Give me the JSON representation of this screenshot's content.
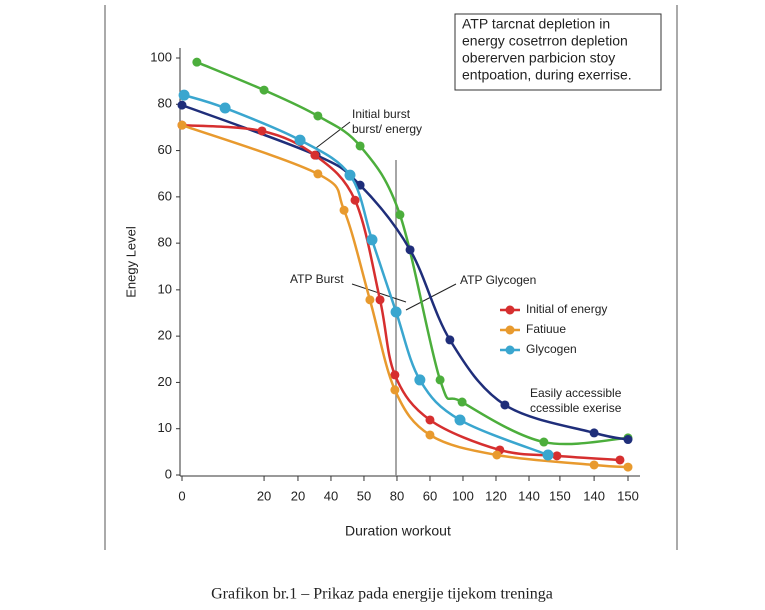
{
  "chart_data": {
    "type": "line",
    "xlabel": "Duration workout",
    "ylabel": "Enegy Level",
    "caption": "Grafikon br.1 – Prikaz pada energije tijekom treninga",
    "xlim": [
      0,
      150
    ],
    "ylim": [
      0,
      100
    ],
    "xticks": [
      0,
      {
        "value": 27.6,
        "label": "20"
      },
      {
        "value": 39,
        "label": "20"
      },
      {
        "value": 50.1,
        "label": "40"
      },
      {
        "value": 61.2,
        "label": "50"
      },
      {
        "value": 72.3,
        "label": "80"
      },
      {
        "value": 83.4,
        "label": "60"
      },
      {
        "value": 94.5,
        "label": "100"
      },
      {
        "value": 105.6,
        "label": "120"
      },
      {
        "value": 116.7,
        "label": "140"
      },
      {
        "value": 127.1,
        "label": "150"
      },
      {
        "value": 138.6,
        "label": "140"
      },
      150
    ],
    "yticks": [
      0,
      {
        "value": 11.1,
        "label": "10"
      },
      {
        "value": 22.2,
        "label": "20"
      },
      {
        "value": 33.3,
        "label": "20"
      },
      {
        "value": 44.4,
        "label": "10"
      },
      {
        "value": 55.6,
        "label": "80"
      },
      {
        "value": 66.7,
        "label": "60"
      },
      {
        "value": 77.8,
        "label": "60"
      },
      {
        "value": 88.9,
        "label": "80"
      },
      100
    ],
    "series": [
      {
        "color": "#4cae3c",
        "x": [
          5,
          27.6,
          45.7,
          59.9,
          73.3,
          86.8,
          94.2,
          121.7,
          150
        ],
        "values": [
          99,
          92.3,
          86.1,
          78.9,
          62.4,
          22.8,
          17.5,
          7.9,
          8.9
        ]
      },
      {
        "color": "#1f2e7a",
        "x": [
          0,
          45.1,
          59.9,
          76.7,
          90.1,
          108.6,
          138.6,
          150
        ],
        "values": [
          88.7,
          76.7,
          69.5,
          54,
          32.4,
          16.8,
          10.1,
          8.5
        ]
      },
      {
        "name": "Initial of energy",
        "color": "#d62f2f",
        "x": [
          0,
          26.9,
          44.7,
          58.2,
          66.6,
          71.6,
          83.4,
          106.9,
          126.1,
          147.3
        ],
        "values": [
          83.9,
          82.5,
          76.7,
          65.9,
          42,
          24,
          13.2,
          6,
          4.6,
          3.6
        ]
      },
      {
        "name": "Fatiuue",
        "color": "#e89a2e",
        "x": [
          0,
          45.7,
          54.5,
          63.2,
          71.6,
          83.4,
          105.9,
          138.6,
          150
        ],
        "values": [
          83.9,
          72.2,
          63.5,
          42,
          20.4,
          9.6,
          4.8,
          2.4,
          1.9
        ]
      },
      {
        "name": "Glycogen",
        "color": "#3aa6cf",
        "x": [
          0.7,
          14.5,
          39.7,
          56.5,
          63.9,
          72,
          80,
          93.5,
          123.1
        ],
        "values": [
          91.1,
          88,
          80.3,
          71.9,
          56.4,
          39.1,
          22.8,
          13.2,
          4.8
        ]
      }
    ],
    "annotations": {
      "box": [
        "ATP tarcnat depletion in",
        "energy cosetrron depletion",
        "obererven parbicion stoy",
        "entpoation, during exerrise."
      ],
      "initial": [
        "Initial burst",
        "burst/ energy"
      ],
      "atp_burst": "ATP Burst",
      "atp_glycogen": "ATP Glycogen",
      "easy": [
        "Easily accessible",
        "ccessible exerise"
      ]
    },
    "legend": "right"
  }
}
